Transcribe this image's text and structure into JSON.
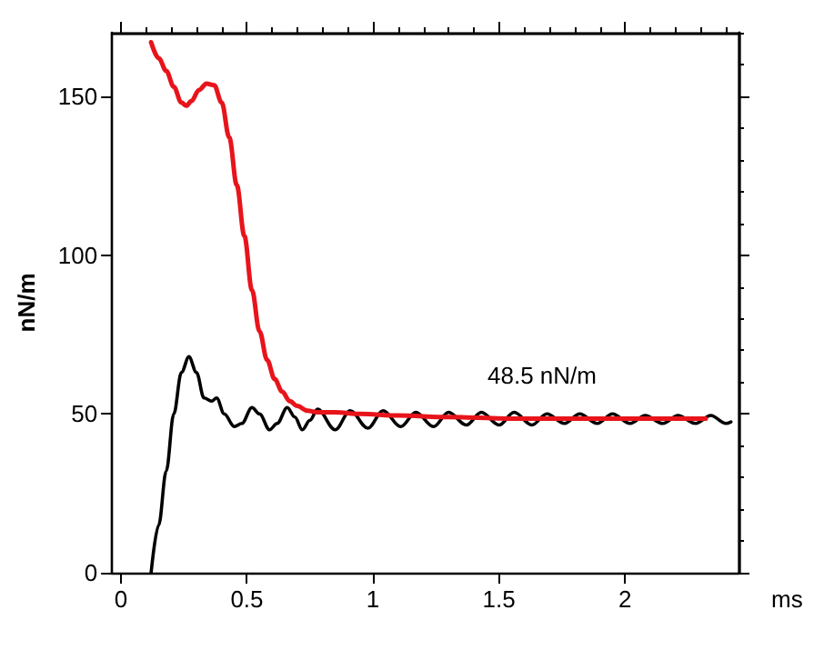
{
  "chart_data": {
    "type": "line",
    "xlabel": "ms",
    "ylabel": "nN/m",
    "xlim": [
      -0.035,
      2.45
    ],
    "xticks": [
      0,
      0.5,
      1,
      1.5,
      2
    ],
    "ylim": [
      0,
      170
    ],
    "yticks": [
      0,
      50,
      100,
      150
    ],
    "grid": false,
    "marker": "none",
    "line_style": "solid",
    "annotations": [
      "48.5 nN/m"
    ],
    "series": [
      {
        "color": "#e8141b",
        "x": [
          0.12,
          0.15,
          0.18,
          0.21,
          0.24,
          0.26,
          0.28,
          0.31,
          0.34,
          0.37,
          0.4,
          0.43,
          0.46,
          0.49,
          0.52,
          0.55,
          0.58,
          0.61,
          0.64,
          0.67,
          0.7,
          0.74,
          0.78,
          0.85,
          0.95,
          1.1,
          1.3,
          1.6,
          2.0,
          2.32
        ],
        "values": [
          167,
          162,
          158,
          153,
          148,
          147,
          148.5,
          152,
          154,
          153.5,
          148,
          137,
          122,
          106,
          89,
          76,
          67,
          61,
          57,
          54,
          52.5,
          51,
          50.5,
          50.5,
          50,
          49.5,
          49,
          48.5,
          48.5,
          48.5
        ]
      },
      {
        "color": "#000000",
        "x": [
          0.12,
          0.15,
          0.18,
          0.21,
          0.24,
          0.27,
          0.3,
          0.33,
          0.36,
          0.38,
          0.41,
          0.45,
          0.48,
          0.52,
          0.55,
          0.59,
          0.62,
          0.66,
          0.69,
          0.72,
          0.75,
          0.78,
          0.85,
          0.91,
          0.98,
          1.04,
          1.11,
          1.17,
          1.24,
          1.3,
          1.37,
          1.43,
          1.5,
          1.56,
          1.63,
          1.69,
          1.76,
          1.82,
          1.89,
          1.95,
          2.02,
          2.08,
          2.15,
          2.21,
          2.28,
          2.34,
          2.4,
          2.42
        ],
        "values": [
          0,
          15,
          32,
          50,
          63,
          68,
          63,
          55,
          54,
          55,
          50,
          46,
          47,
          52,
          50,
          45,
          47,
          52,
          49,
          45,
          48,
          51.5,
          45,
          51,
          45.5,
          51,
          46,
          50.5,
          46,
          50.5,
          46.5,
          50.5,
          46.5,
          50.5,
          46.5,
          50,
          47,
          50,
          47,
          50,
          47,
          49.5,
          47,
          49.5,
          47,
          49.5,
          47,
          47.5
        ]
      }
    ]
  }
}
